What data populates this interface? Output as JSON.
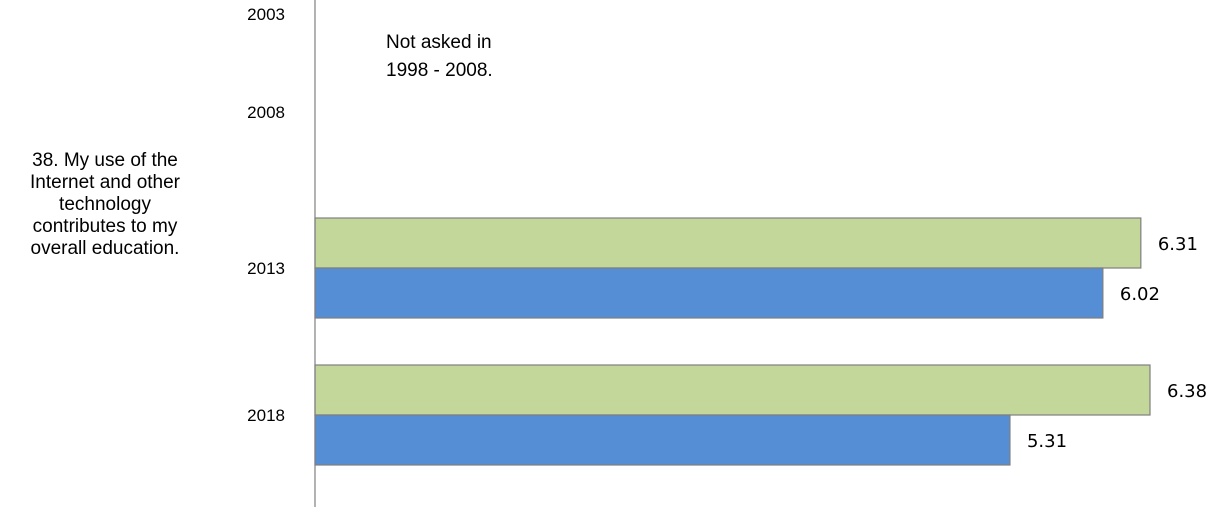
{
  "chart_data": {
    "type": "bar",
    "orientation": "horizontal",
    "question": [
      "38. My use of the",
      "Internet and other",
      "technology",
      "contributes to my",
      "overall education."
    ],
    "categories": [
      "2003",
      "2008",
      "2013",
      "2018"
    ],
    "series": [
      {
        "color": "#c4d79b",
        "values": [
          null,
          null,
          6.31,
          6.38
        ]
      },
      {
        "color": "#558ed5",
        "values": [
          null,
          null,
          6.02,
          5.31
        ]
      }
    ],
    "data_labels": [
      [
        "",
        "",
        "6.31",
        "6.38"
      ],
      [
        "",
        "",
        "6.02",
        "5.31"
      ]
    ],
    "annotation": [
      "Not asked in",
      "1998 - 2008."
    ],
    "legend": "none",
    "grid": false
  }
}
